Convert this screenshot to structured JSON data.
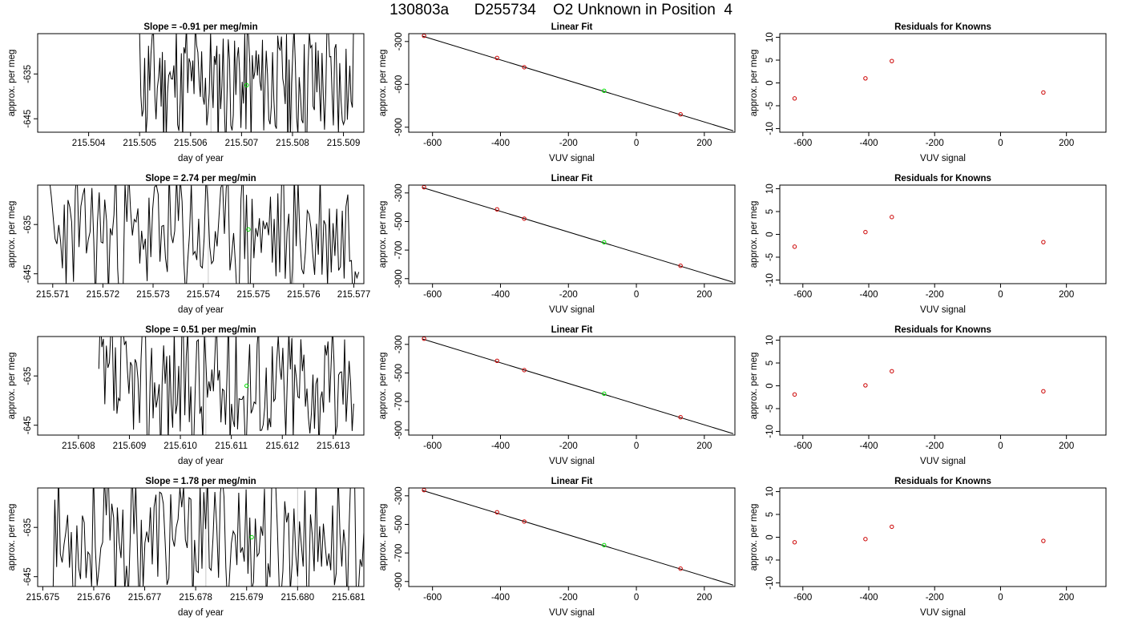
{
  "page_title": "130803a      D255734    O2 Unknown in Position  4",
  "chart_data": [
    {
      "type": "line",
      "kind": "time",
      "title": "Slope =  -0.91  per meg/min",
      "xlabel": "day of year",
      "ylabel": "approx. per meg",
      "xlim": [
        215.503,
        215.5094
      ],
      "ylim": [
        -648,
        -626
      ],
      "xticks": [
        "215.504",
        "215.505",
        "215.506",
        "215.507",
        "215.508",
        "215.509"
      ],
      "yticks": [
        "-645",
        "-635"
      ],
      "vlines": [
        215.5064,
        215.508
      ],
      "marker": {
        "x": 215.5071,
        "y": -637.5
      },
      "series": [
        {
          "color": "#000000",
          "seed": 11,
          "x_start": 215.505,
          "x_end": 215.5092
        }
      ]
    },
    {
      "type": "scatter",
      "kind": "fit",
      "title": "Linear Fit",
      "xlabel": "VUV signal",
      "ylabel": "approx. per meg",
      "xlim": [
        -670,
        290
      ],
      "ylim": [
        -935,
        -245
      ],
      "xticks": [
        "-600",
        "-400",
        "-200",
        "0",
        "200"
      ],
      "yticks": [
        "-300",
        "-600",
        "-900"
      ],
      "fit_line": [
        [
          -630,
          -262
        ],
        [
          285,
          -925
        ]
      ],
      "points": [
        {
          "x": -625,
          "y": -260,
          "color": "#cc0000"
        },
        {
          "x": -410,
          "y": -415,
          "color": "#cc0000"
        },
        {
          "x": -330,
          "y": -480,
          "color": "#cc0000"
        },
        {
          "x": 130,
          "y": -810,
          "color": "#cc0000"
        },
        {
          "x": -95,
          "y": -645,
          "color": "#00dd00"
        }
      ]
    },
    {
      "type": "scatter",
      "kind": "resid",
      "title": "Residuals for Knowns",
      "xlabel": "VUV signal",
      "ylabel": "approx. per meg",
      "xlim": [
        -670,
        320
      ],
      "ylim": [
        -10.8,
        10.8
      ],
      "xticks": [
        "-600",
        "-400",
        "-200",
        "0",
        "200"
      ],
      "yticks": [
        "10",
        "5",
        "0",
        "-5",
        "-10"
      ],
      "points": [
        {
          "x": -625,
          "y": -3.4,
          "color": "#cc0000"
        },
        {
          "x": -410,
          "y": 1.0,
          "color": "#cc0000"
        },
        {
          "x": -330,
          "y": 4.8,
          "color": "#cc0000"
        },
        {
          "x": 130,
          "y": -2.1,
          "color": "#cc0000"
        }
      ]
    },
    {
      "type": "line",
      "kind": "time",
      "title": "Slope =  2.74  per meg/min",
      "xlabel": "day of year",
      "ylabel": "approx. per meg",
      "xlim": [
        215.5707,
        215.5772
      ],
      "ylim": [
        -647,
        -627
      ],
      "xticks": [
        "215.571",
        "215.572",
        "215.573",
        "215.574",
        "215.575",
        "215.576",
        "215.577"
      ],
      "yticks": [
        "-645",
        "-635"
      ],
      "vlines": [
        215.5741,
        215.5758
      ],
      "marker": {
        "x": 215.5749,
        "y": -636
      },
      "series": [
        {
          "color": "#000000",
          "seed": 23,
          "x_start": 215.5709,
          "x_end": 215.5771
        }
      ]
    },
    {
      "type": "scatter",
      "kind": "fit",
      "title": "Linear Fit",
      "xlabel": "VUV signal",
      "ylabel": "approx. per meg",
      "xlim": [
        -670,
        290
      ],
      "ylim": [
        -935,
        -245
      ],
      "xticks": [
        "-600",
        "-400",
        "-200",
        "0",
        "200"
      ],
      "yticks": [
        "-300",
        "-500",
        "-700",
        "-900"
      ],
      "fit_line": [
        [
          -630,
          -262
        ],
        [
          285,
          -925
        ]
      ],
      "points": [
        {
          "x": -625,
          "y": -260,
          "color": "#cc0000"
        },
        {
          "x": -410,
          "y": -415,
          "color": "#cc0000"
        },
        {
          "x": -330,
          "y": -480,
          "color": "#cc0000"
        },
        {
          "x": 130,
          "y": -810,
          "color": "#cc0000"
        },
        {
          "x": -95,
          "y": -645,
          "color": "#00dd00"
        }
      ]
    },
    {
      "type": "scatter",
      "kind": "resid",
      "title": "Residuals for Knowns",
      "xlabel": "VUV signal",
      "ylabel": "approx. per meg",
      "xlim": [
        -670,
        320
      ],
      "ylim": [
        -10.8,
        10.8
      ],
      "xticks": [
        "-600",
        "-400",
        "-200",
        "0",
        "200"
      ],
      "yticks": [
        "10",
        "5",
        "0",
        "-5",
        "-10"
      ],
      "points": [
        {
          "x": -625,
          "y": -2.7,
          "color": "#cc0000"
        },
        {
          "x": -410,
          "y": 0.5,
          "color": "#cc0000"
        },
        {
          "x": -330,
          "y": 3.8,
          "color": "#cc0000"
        },
        {
          "x": 130,
          "y": -1.7,
          "color": "#cc0000"
        }
      ]
    },
    {
      "type": "line",
      "kind": "time",
      "title": "Slope =  0.51  per meg/min",
      "xlabel": "day of year",
      "ylabel": "approx. per meg",
      "xlim": [
        215.6072,
        215.6136
      ],
      "ylim": [
        -647,
        -627
      ],
      "xticks": [
        "215.608",
        "215.609",
        "215.610",
        "215.611",
        "215.612",
        "215.613"
      ],
      "yticks": [
        "-645",
        "-635"
      ],
      "vlines": [
        215.6105,
        215.6122
      ],
      "marker": {
        "x": 215.6113,
        "y": -637
      },
      "series": [
        {
          "color": "#000000",
          "seed": 37,
          "x_start": 215.6084,
          "x_end": 215.6134
        }
      ]
    },
    {
      "type": "scatter",
      "kind": "fit",
      "title": "Linear Fit",
      "xlabel": "VUV signal",
      "ylabel": "approx. per meg",
      "xlim": [
        -670,
        290
      ],
      "ylim": [
        -935,
        -245
      ],
      "xticks": [
        "-600",
        "-400",
        "-200",
        "0",
        "200"
      ],
      "yticks": [
        "-300",
        "-500",
        "-700",
        "-900"
      ],
      "fit_line": [
        [
          -630,
          -262
        ],
        [
          285,
          -925
        ]
      ],
      "points": [
        {
          "x": -625,
          "y": -260,
          "color": "#cc0000"
        },
        {
          "x": -410,
          "y": -415,
          "color": "#cc0000"
        },
        {
          "x": -330,
          "y": -480,
          "color": "#cc0000"
        },
        {
          "x": 130,
          "y": -810,
          "color": "#cc0000"
        },
        {
          "x": -95,
          "y": -645,
          "color": "#00dd00"
        }
      ]
    },
    {
      "type": "scatter",
      "kind": "resid",
      "title": "Residuals for Knowns",
      "xlabel": "VUV signal",
      "ylabel": "approx. per meg",
      "xlim": [
        -670,
        320
      ],
      "ylim": [
        -10.8,
        10.8
      ],
      "xticks": [
        "-600",
        "-400",
        "-200",
        "0",
        "200"
      ],
      "yticks": [
        "10",
        "5",
        "0",
        "-5",
        "-10"
      ],
      "points": [
        {
          "x": -625,
          "y": -1.9,
          "color": "#cc0000"
        },
        {
          "x": -410,
          "y": 0.1,
          "color": "#cc0000"
        },
        {
          "x": -330,
          "y": 3.2,
          "color": "#cc0000"
        },
        {
          "x": 130,
          "y": -1.2,
          "color": "#cc0000"
        }
      ]
    },
    {
      "type": "line",
      "kind": "time",
      "title": "Slope =  1.78  per meg/min",
      "xlabel": "day of year",
      "ylabel": "approx. per meg",
      "xlim": [
        215.6749,
        215.6813
      ],
      "ylim": [
        -647,
        -627
      ],
      "xticks": [
        "215.675",
        "215.676",
        "215.677",
        "215.678",
        "215.679",
        "215.680",
        "215.681"
      ],
      "yticks": [
        "-645",
        "-635"
      ],
      "vlines": [
        215.6782,
        215.68
      ],
      "marker": {
        "x": 215.6791,
        "y": -637
      },
      "series": [
        {
          "color": "#000000",
          "seed": 53,
          "x_start": 215.6752,
          "x_end": 215.6813
        }
      ]
    },
    {
      "type": "scatter",
      "kind": "fit",
      "title": "Linear Fit",
      "xlabel": "VUV signal",
      "ylabel": "approx. per meg",
      "xlim": [
        -670,
        290
      ],
      "ylim": [
        -935,
        -245
      ],
      "xticks": [
        "-600",
        "-400",
        "-200",
        "0",
        "200"
      ],
      "yticks": [
        "-300",
        "-500",
        "-700",
        "-900"
      ],
      "fit_line": [
        [
          -630,
          -262
        ],
        [
          285,
          -925
        ]
      ],
      "points": [
        {
          "x": -625,
          "y": -260,
          "color": "#cc0000"
        },
        {
          "x": -410,
          "y": -415,
          "color": "#cc0000"
        },
        {
          "x": -330,
          "y": -480,
          "color": "#cc0000"
        },
        {
          "x": 130,
          "y": -810,
          "color": "#cc0000"
        },
        {
          "x": -95,
          "y": -645,
          "color": "#00dd00"
        }
      ]
    },
    {
      "type": "scatter",
      "kind": "resid",
      "title": "Residuals for Knowns",
      "xlabel": "VUV signal",
      "ylabel": "approx. per meg",
      "xlim": [
        -670,
        320
      ],
      "ylim": [
        -10.8,
        10.8
      ],
      "xticks": [
        "-600",
        "-400",
        "-200",
        "0",
        "200"
      ],
      "yticks": [
        "10",
        "5",
        "0",
        "-5",
        "-10"
      ],
      "points": [
        {
          "x": -625,
          "y": -1.1,
          "color": "#cc0000"
        },
        {
          "x": -410,
          "y": -0.4,
          "color": "#cc0000"
        },
        {
          "x": -330,
          "y": 2.3,
          "color": "#cc0000"
        },
        {
          "x": 130,
          "y": -0.8,
          "color": "#cc0000"
        }
      ]
    }
  ]
}
